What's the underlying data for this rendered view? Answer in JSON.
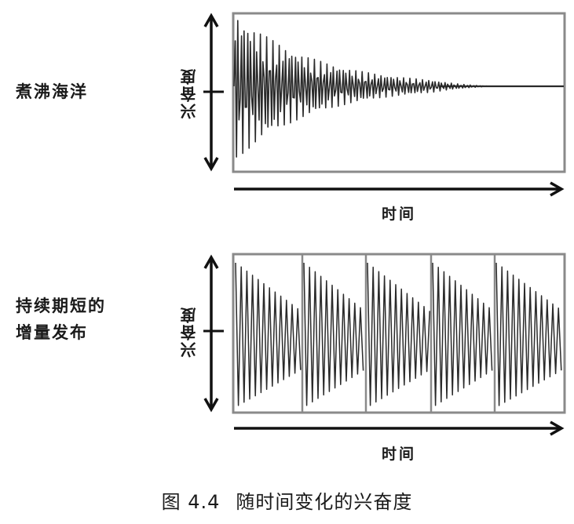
{
  "panels": [
    {
      "row_label": "煮沸海洋",
      "y_label": "兴奋度",
      "x_label": "时间"
    },
    {
      "row_label": "持续期短的\n增量发布",
      "y_label": "兴奋度",
      "x_label": "时间"
    }
  ],
  "caption": {
    "number": "图 4.4",
    "title": "随时间变化的兴奋度"
  },
  "colors": {
    "signal": "#2a2a2a",
    "frame": "#8a8a8a",
    "axis": "#111111"
  }
}
